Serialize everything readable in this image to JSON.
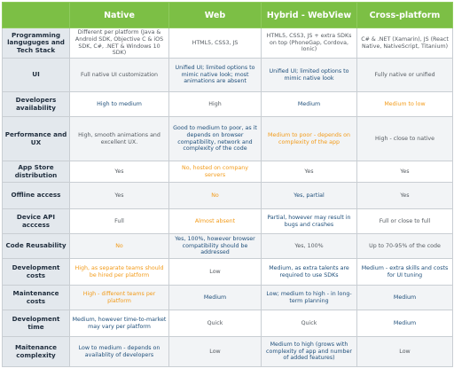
{
  "header": {
    "corner": "",
    "columns": [
      "Native",
      "Web",
      "Hybrid - WebView",
      "Cross-platform"
    ]
  },
  "colors": {
    "header_bg": "#7cbf45",
    "row_label_bg": "#e3e8ed",
    "blue_text": "#1f4f7a",
    "orange_text": "#f29b1a",
    "gray_text": "#555b61"
  },
  "rows": [
    {
      "label": "Programming languguges and Tech Stack",
      "cells": [
        {
          "text": "Different per platform (Java & Android SDK, Objective C & iOS SDK, C#, .NET & Windows 10 SDK)",
          "tone": "gray"
        },
        {
          "text": "HTML5, CSS3, JS",
          "tone": "gray"
        },
        {
          "text": "HTML5, CSS3, JS + extra SDKs on top (PhoneGap, Cordova, Ionic)",
          "tone": "gray"
        },
        {
          "text": "C# & .NET (Xamarin), JS (React Native, NativeScript, Titanium)",
          "tone": "gray"
        }
      ]
    },
    {
      "label": "UI",
      "cells": [
        {
          "text": "Full native UI customization",
          "tone": "gray"
        },
        {
          "text": "Unified UI; limited options to mimic native look; most animations are absent",
          "tone": "blue"
        },
        {
          "text": "Unified UI; limited options to mimic native look",
          "tone": "blue"
        },
        {
          "text": "Fully native or unified",
          "tone": "gray"
        }
      ]
    },
    {
      "label": "Developers availability",
      "cells": [
        {
          "text": "High to medium",
          "tone": "blue"
        },
        {
          "text": "High",
          "tone": "gray"
        },
        {
          "text": "Medium",
          "tone": "blue"
        },
        {
          "text": "Medium to low",
          "tone": "orange"
        }
      ]
    },
    {
      "label": "Performance and UX",
      "cells": [
        {
          "text": "High, smooth animations and excellent UX.",
          "tone": "gray"
        },
        {
          "text": "Good to medium to poor, as it depends on browser compatibility, network and complexity of the code",
          "tone": "blue"
        },
        {
          "text": "Medium to poor - depends on complexity of the app",
          "tone": "orange"
        },
        {
          "text": "High - close to native",
          "tone": "gray"
        }
      ]
    },
    {
      "label": "App Store distribution",
      "cells": [
        {
          "text": "Yes",
          "tone": "gray"
        },
        {
          "text": "No, hosted on company servers",
          "tone": "orange"
        },
        {
          "text": "Yes",
          "tone": "gray"
        },
        {
          "text": "Yes",
          "tone": "gray"
        }
      ]
    },
    {
      "label": "Offline access",
      "cells": [
        {
          "text": "Yes",
          "tone": "gray"
        },
        {
          "text": "No",
          "tone": "orange"
        },
        {
          "text": "Yes, partial",
          "tone": "blue"
        },
        {
          "text": "Yes",
          "tone": "gray"
        }
      ]
    },
    {
      "label": "Device API acccess",
      "cells": [
        {
          "text": "Full",
          "tone": "gray"
        },
        {
          "text": "Almost absent",
          "tone": "orange"
        },
        {
          "text": "Partial, however may result in bugs and crashes",
          "tone": "blue"
        },
        {
          "text": "Full or close to full",
          "tone": "gray"
        }
      ]
    },
    {
      "label": "Code Reusability",
      "cells": [
        {
          "text": "No",
          "tone": "orange"
        },
        {
          "text": "Yes, 100%, however browser compatibility should be addressed",
          "tone": "blue"
        },
        {
          "text": "Yes, 100%",
          "tone": "gray"
        },
        {
          "text": "Up to 70-95% of the code",
          "tone": "gray"
        }
      ]
    },
    {
      "label": "Development costs",
      "cells": [
        {
          "text": "High, as separate teams should be hired per platform",
          "tone": "orange"
        },
        {
          "text": "Low",
          "tone": "gray"
        },
        {
          "text": "Medium, as extra talents are required to use SDKs",
          "tone": "blue"
        },
        {
          "text": "Medium - extra skills and costs for UI tuning",
          "tone": "blue"
        }
      ]
    },
    {
      "label": "Maintenance costs",
      "cells": [
        {
          "text": "High - different teams per platform",
          "tone": "orange"
        },
        {
          "text": "Medium",
          "tone": "blue"
        },
        {
          "text": "Low; medium to high - in long-term planning",
          "tone": "blue"
        },
        {
          "text": "Medium",
          "tone": "blue"
        }
      ]
    },
    {
      "label": "Development time",
      "cells": [
        {
          "text": "Medium, however time-to-market may vary per platform",
          "tone": "blue"
        },
        {
          "text": "Quick",
          "tone": "gray"
        },
        {
          "text": "Quick",
          "tone": "gray"
        },
        {
          "text": "Medium",
          "tone": "blue"
        }
      ]
    },
    {
      "label": "Maitenance complexity",
      "cells": [
        {
          "text": "Low to medium - depends on availablity of developers",
          "tone": "blue"
        },
        {
          "text": "Low",
          "tone": "gray"
        },
        {
          "text": "Medium to high (grows with complexity of app and number of added features)",
          "tone": "blue"
        },
        {
          "text": "Low",
          "tone": "gray"
        }
      ]
    }
  ]
}
